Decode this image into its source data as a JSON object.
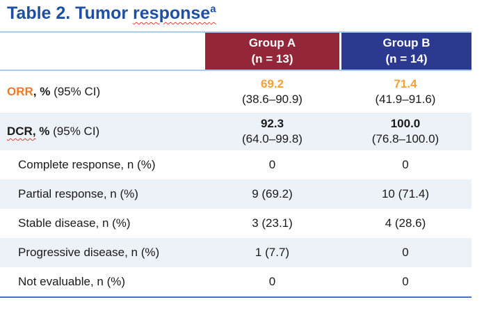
{
  "title": {
    "prefix": "Table 2. Tumor ",
    "misspelled_word": "response",
    "superscript": "a"
  },
  "colors": {
    "title-blue": "#1e4fa3",
    "maroon": "#942639",
    "header-blue": "#2b3990",
    "orange-label": "#e87b27",
    "orange-value": "#f5a033",
    "light-border": "#a9cded",
    "stripe": "#edf2f8",
    "bottom-line": "#4472c4",
    "squiggle": "#e03c31"
  },
  "table": {
    "header": {
      "group_a_name": "Group A",
      "group_a_n": "(n = 13)",
      "group_b_name": "Group B",
      "group_b_n": "(n = 14)"
    },
    "orr": {
      "label_highlight": "ORR",
      "label_bold": ", %",
      "label_rest": " (95% CI)",
      "a_value": "69.2",
      "a_ci": "(38.6–90.9)",
      "b_value": "71.4",
      "b_ci": "(41.9–91.6)"
    },
    "dcr": {
      "label_bold_misspelled": "DCR,",
      "label_bold": " %",
      "label_rest": " (95% CI)",
      "a_value": "92.3",
      "a_ci": "(64.0–99.8)",
      "b_value": "100.0",
      "b_ci": "(76.8–100.0)"
    },
    "rows": [
      {
        "label": "Complete response, n (%)",
        "a": "0",
        "b": "0"
      },
      {
        "label": "Partial response, n (%)",
        "a": "9 (69.2)",
        "b": "10 (71.4)"
      },
      {
        "label": "Stable disease, n (%)",
        "a": "3 (23.1)",
        "b": "4 (28.6)"
      },
      {
        "label": "Progressive disease, n (%)",
        "a": "1 (7.7)",
        "b": "0"
      },
      {
        "label": "Not evaluable, n (%)",
        "a": "0",
        "b": "0"
      }
    ]
  }
}
